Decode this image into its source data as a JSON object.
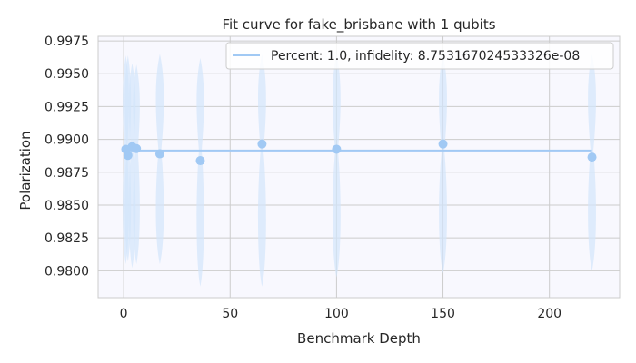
{
  "chart_data": {
    "type": "scatter",
    "title": "Fit curve for fake_brisbane with 1 qubits",
    "xlabel": "Benchmark Depth",
    "ylabel": "Polarization",
    "xlim": [
      -12,
      233
    ],
    "ylim": [
      0.97795,
      0.99785
    ],
    "xticks": [
      0,
      50,
      100,
      150,
      200
    ],
    "xtick_labels": [
      "0",
      "50",
      "100",
      "150",
      "200"
    ],
    "yticks": [
      0.98,
      0.9825,
      0.985,
      0.9875,
      0.99,
      0.9925,
      0.995,
      0.9975
    ],
    "ytick_labels": [
      "0.9800",
      "0.9825",
      "0.9850",
      "0.9875",
      "0.9900",
      "0.9925",
      "0.9950",
      "0.9975"
    ],
    "grid": true,
    "legend_position": "top-right",
    "colors": {
      "background": "#f8f8fe",
      "grid": "#cccccc",
      "point": "#a1c9f4",
      "fit_line": "#a1c9f4",
      "violin": "#d3e5fb",
      "text": "#262626"
    },
    "series": [
      {
        "name": "Percent: 1.0, infidelity: 8.753167024533326e-08",
        "kind": "line",
        "x": [
          1,
          220
        ],
        "y": [
          0.98915,
          0.98915
        ]
      },
      {
        "kind": "points",
        "x": [
          1,
          2,
          4,
          6,
          17,
          36,
          65,
          100,
          150,
          220
        ],
        "y": [
          0.98925,
          0.98878,
          0.98945,
          0.9893,
          0.9889,
          0.98838,
          0.98965,
          0.98925,
          0.98965,
          0.98865
        ]
      }
    ],
    "violins": [
      {
        "x": 1,
        "min": 0.9805,
        "max": 0.9964,
        "half_width": 1.8
      },
      {
        "x": 2,
        "min": 0.9807,
        "max": 0.9964,
        "half_width": 1.8
      },
      {
        "x": 4,
        "min": 0.9802,
        "max": 0.9958,
        "half_width": 2.0
      },
      {
        "x": 6,
        "min": 0.9805,
        "max": 0.9957,
        "half_width": 2.0
      },
      {
        "x": 17,
        "min": 0.9805,
        "max": 0.9965,
        "half_width": 2.4
      },
      {
        "x": 36,
        "min": 0.9788,
        "max": 0.9962,
        "half_width": 2.2
      },
      {
        "x": 65,
        "min": 0.9788,
        "max": 0.9965,
        "half_width": 2.4
      },
      {
        "x": 100,
        "min": 0.9795,
        "max": 0.9965,
        "half_width": 2.4
      },
      {
        "x": 150,
        "min": 0.9798,
        "max": 0.9965,
        "half_width": 2.4
      },
      {
        "x": 220,
        "min": 0.98,
        "max": 0.9965,
        "half_width": 2.4
      }
    ]
  }
}
